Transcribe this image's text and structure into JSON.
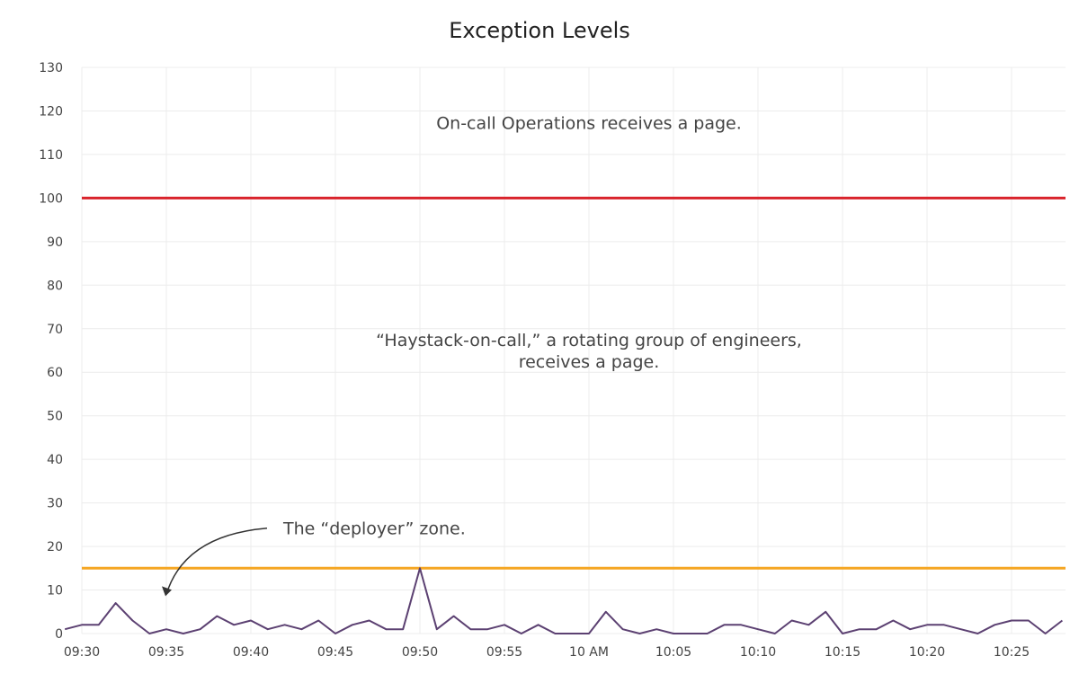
{
  "chart_data": {
    "type": "line",
    "title": "Exception Levels",
    "xlabel": "",
    "ylabel": "",
    "ylim": [
      0,
      130
    ],
    "yticks": [
      0,
      10,
      20,
      30,
      40,
      50,
      60,
      70,
      80,
      90,
      100,
      110,
      120,
      130
    ],
    "xlim": [
      "09:30",
      "10:28"
    ],
    "xticks": [
      {
        "t": "09:30",
        "label": "09:30"
      },
      {
        "t": "09:35",
        "label": "09:35"
      },
      {
        "t": "09:40",
        "label": "09:40"
      },
      {
        "t": "09:45",
        "label": "09:45"
      },
      {
        "t": "09:50",
        "label": "09:50"
      },
      {
        "t": "09:55",
        "label": "09:55"
      },
      {
        "t": "10:00",
        "label": "10 AM"
      },
      {
        "t": "10:05",
        "label": "10:05"
      },
      {
        "t": "10:10",
        "label": "10:10"
      },
      {
        "t": "10:15",
        "label": "10:15"
      },
      {
        "t": "10:20",
        "label": "10:20"
      },
      {
        "t": "10:25",
        "label": "10:25"
      }
    ],
    "grid": true,
    "series": [
      {
        "color": "#5c4172",
        "x": [
          "09:29",
          "09:30",
          "09:31",
          "09:32",
          "09:33",
          "09:34",
          "09:35",
          "09:36",
          "09:37",
          "09:38",
          "09:39",
          "09:40",
          "09:41",
          "09:42",
          "09:43",
          "09:44",
          "09:45",
          "09:46",
          "09:47",
          "09:48",
          "09:49",
          "09:50",
          "09:51",
          "09:52",
          "09:53",
          "09:54",
          "09:55",
          "09:56",
          "09:57",
          "09:58",
          "09:59",
          "10:00",
          "10:01",
          "10:02",
          "10:03",
          "10:04",
          "10:05",
          "10:06",
          "10:07",
          "10:08",
          "10:09",
          "10:10",
          "10:11",
          "10:12",
          "10:13",
          "10:14",
          "10:15",
          "10:16",
          "10:17",
          "10:18",
          "10:19",
          "10:20",
          "10:21",
          "10:22",
          "10:23",
          "10:24",
          "10:25",
          "10:26",
          "10:27",
          "10:28"
        ],
        "y": [
          1,
          2,
          2,
          7,
          3,
          0,
          1,
          0,
          1,
          4,
          2,
          3,
          1,
          2,
          1,
          3,
          0,
          2,
          3,
          1,
          1,
          15,
          1,
          4,
          1,
          1,
          2,
          0,
          2,
          0,
          0,
          0,
          5,
          1,
          0,
          1,
          0,
          0,
          0,
          2,
          2,
          1,
          0,
          3,
          2,
          5,
          0,
          1,
          1,
          3,
          1,
          2,
          2,
          1,
          0,
          2,
          3,
          3,
          0,
          3
        ]
      }
    ],
    "thresholds": [
      {
        "value": 100,
        "color": "#d9232b"
      },
      {
        "value": 15,
        "color": "#f5a623"
      }
    ],
    "annotations": [
      {
        "text": "On-call Operations receives a page.",
        "x": "10:00",
        "y": 120
      },
      {
        "lines": [
          "“Haystack-on-call,” a rotating group of engineers,",
          "receives a page."
        ],
        "x": "10:00",
        "y": 66
      },
      {
        "text": "The “deployer” zone.",
        "x": "09:42",
        "y": 24,
        "arrow_to": {
          "x": "09:35",
          "y": 9
        }
      }
    ]
  }
}
